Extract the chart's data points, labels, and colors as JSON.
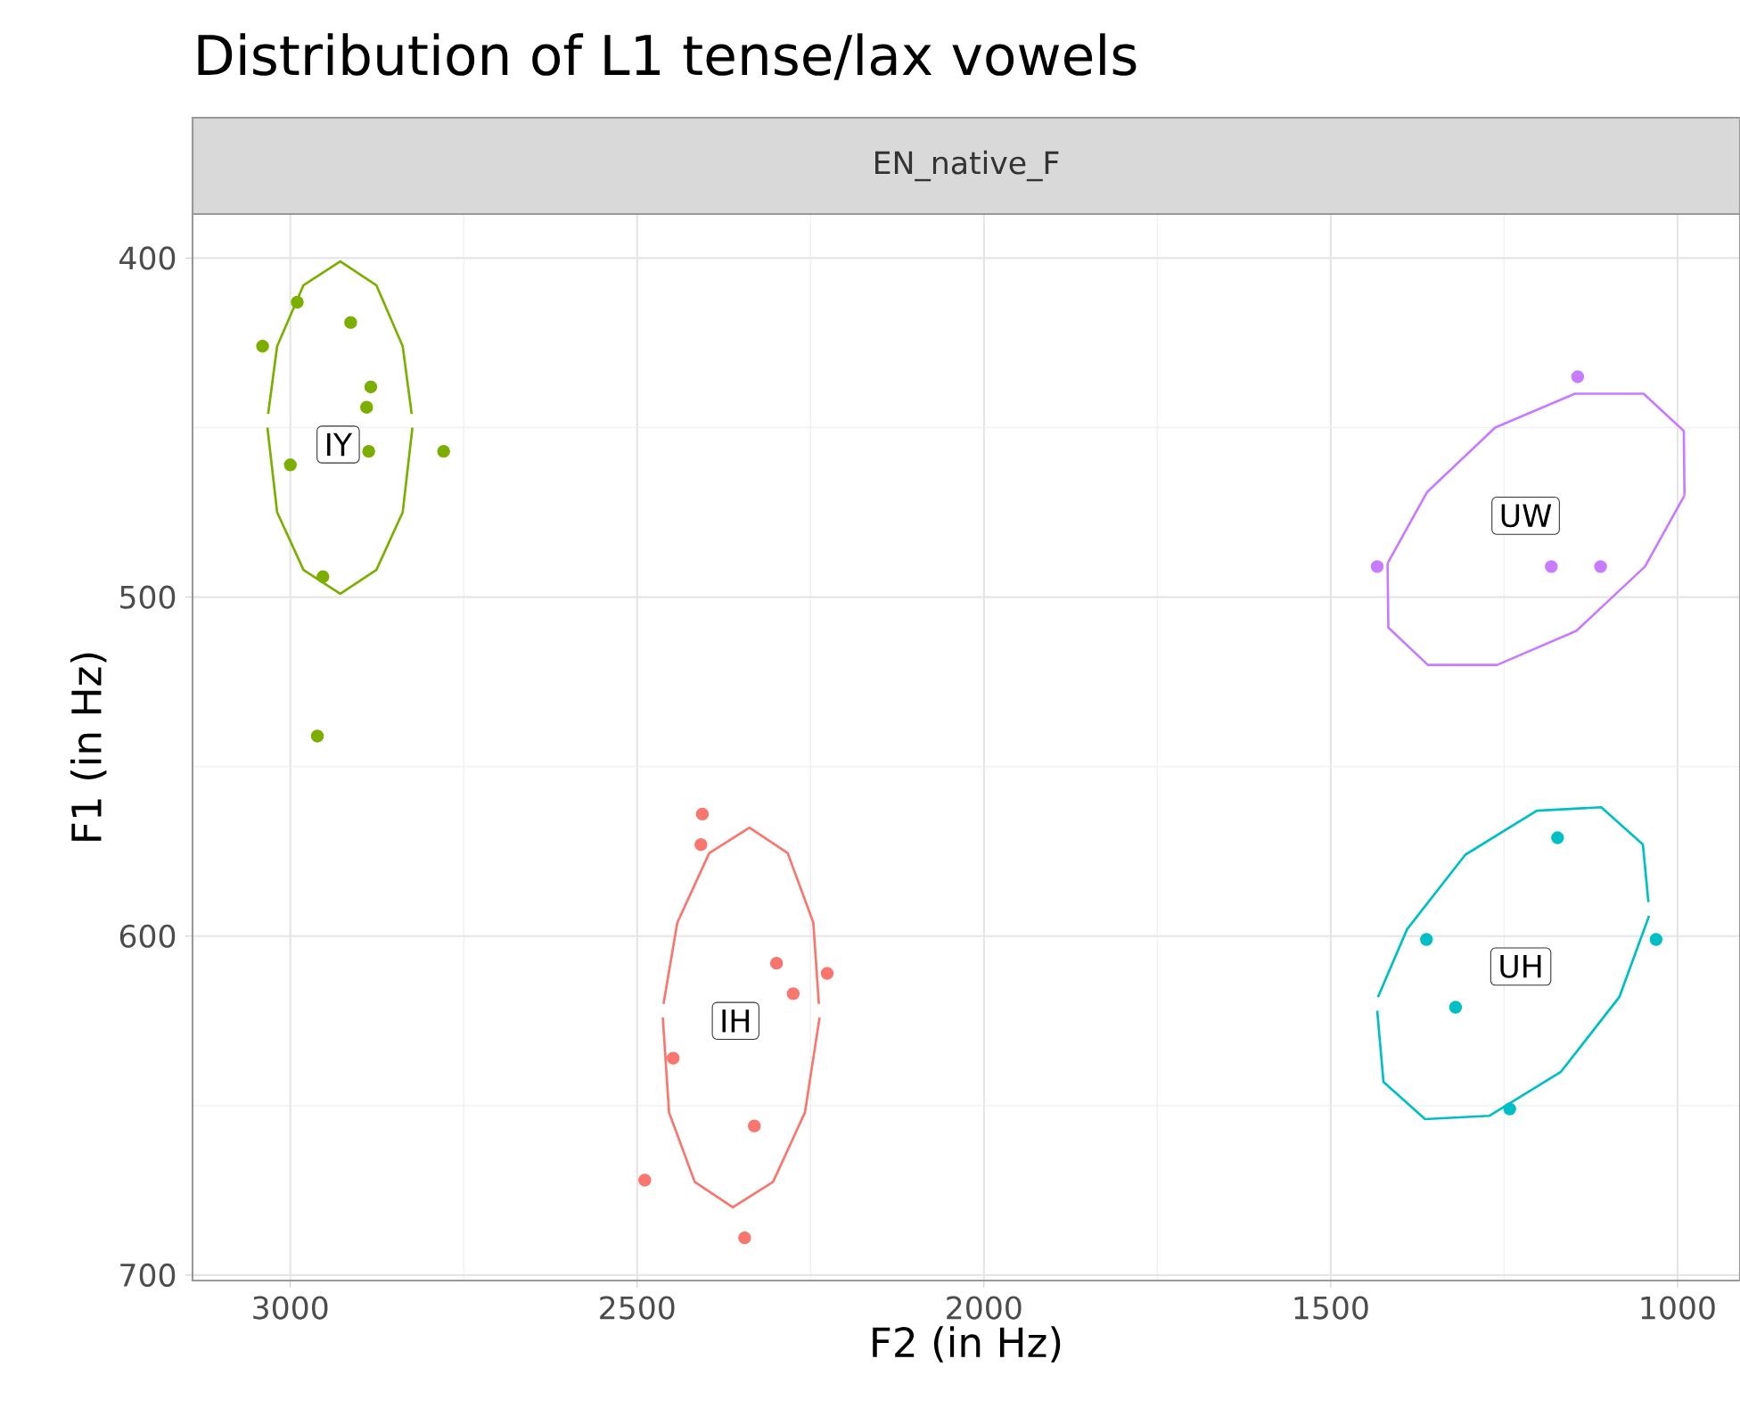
{
  "chart_data": {
    "type": "scatter",
    "title": "Distribution of L1 tense/lax vowels",
    "subtitle": "EN_native_F",
    "xlabel": "F2 (in Hz)",
    "ylabel": "F1 (in Hz)",
    "xlim": [
      3141,
      910
    ],
    "ylim": [
      701.6,
      387
    ],
    "xticks": [
      3000,
      2500,
      2000,
      1500,
      1000
    ],
    "yticks": [
      400,
      500,
      600,
      700
    ],
    "grid": true,
    "series": [
      {
        "marker": "circle",
        "color": "#7CAE00",
        "x": [
          3040,
          2990,
          2913,
          2884,
          2890,
          2779,
          3000,
          2953,
          2961,
          2887
        ],
        "values": [
          426,
          413,
          419,
          438,
          444,
          457,
          461,
          494,
          541,
          457
        ]
      },
      {
        "marker": "circle",
        "color": "#F8766D",
        "x": [
          2406,
          2408,
          2299,
          2226,
          2275,
          2448,
          2331,
          2489,
          2345
        ],
        "values": [
          564,
          573,
          608,
          611,
          617,
          636,
          656,
          672,
          689
        ]
      },
      {
        "marker": "circle",
        "color": "#C77CFF",
        "x": [
          1144,
          1433,
          1182,
          1111
        ],
        "values": [
          435,
          491,
          491,
          491
        ]
      },
      {
        "marker": "circle",
        "color": "#00BFC4",
        "x": [
          1173,
          1362,
          1031,
          1320,
          1242
        ],
        "values": [
          571,
          601,
          601,
          621,
          651
        ]
      },
      {
        "type": "line",
        "marker": "none",
        "color": "#7CAE00",
        "x": [
          3033,
          3019,
          2981,
          2928,
          2876,
          2838,
          2824
        ],
        "values": [
          450,
          475,
          492,
          499,
          492,
          475,
          450
        ]
      },
      {
        "type": "line",
        "marker": "none",
        "color": "#7CAE00",
        "x": [
          3032,
          3019,
          2981,
          2928,
          2876,
          2838,
          2825
        ],
        "values": [
          446,
          426,
          408,
          401,
          408,
          426,
          446
        ]
      },
      {
        "type": "line",
        "marker": "none",
        "color": "#F8766D",
        "x": [
          2463,
          2454,
          2417,
          2362,
          2304,
          2258,
          2237
        ],
        "values": [
          624,
          652,
          672.5,
          680,
          672.5,
          652,
          624
        ]
      },
      {
        "type": "line",
        "marker": "none",
        "color": "#F8766D",
        "x": [
          2462,
          2442,
          2396,
          2338,
          2283,
          2246,
          2238
        ],
        "values": [
          620,
          596,
          575.5,
          568,
          575.5,
          596,
          620
        ]
      },
      {
        "type": "line",
        "marker": "none",
        "color": "#C77CFF",
        "x": [
          1418,
          1417,
          1360,
          1260,
          1146,
          1047,
          990
        ],
        "values": [
          490,
          509,
          520,
          520,
          510,
          491,
          470
        ]
      },
      {
        "type": "line",
        "marker": "none",
        "color": "#C77CFF",
        "x": [
          1418,
          1361,
          1263,
          1148,
          1049,
          991,
          990
        ],
        "values": [
          490,
          469,
          450,
          440,
          440,
          451,
          470
        ]
      },
      {
        "type": "line",
        "marker": "none",
        "color": "#00BFC4",
        "x": [
          1433,
          1424,
          1364,
          1271,
          1168,
          1084,
          1041
        ],
        "values": [
          622,
          643,
          654,
          653,
          640,
          618,
          594
        ]
      },
      {
        "type": "line",
        "marker": "none",
        "color": "#00BFC4",
        "x": [
          1432,
          1390,
          1306,
          1203,
          1110,
          1050,
          1042
        ],
        "values": [
          618,
          598,
          576,
          563,
          562,
          573,
          590
        ]
      }
    ],
    "annotations": [
      {
        "text": "IY",
        "x": 2931,
        "y": 455
      },
      {
        "text": "IH",
        "x": 2358,
        "y": 625
      },
      {
        "text": "UW",
        "x": 1219,
        "y": 476
      },
      {
        "text": "UH",
        "x": 1226,
        "y": 609
      }
    ]
  }
}
